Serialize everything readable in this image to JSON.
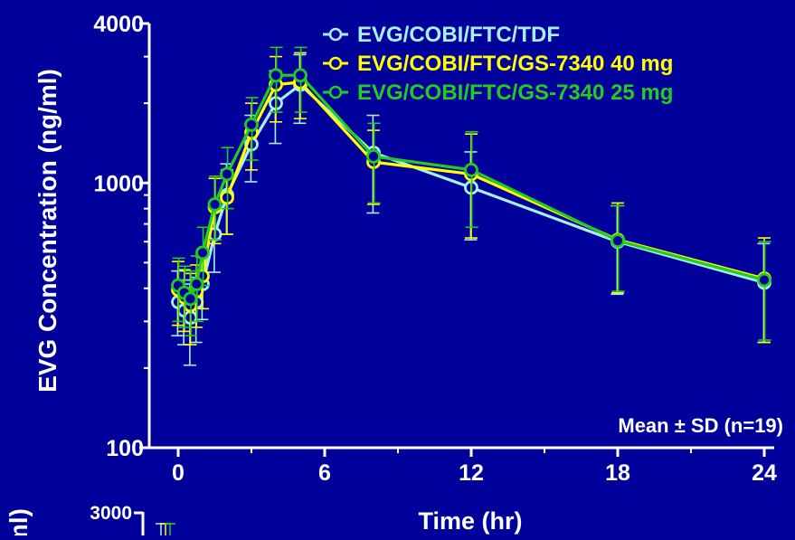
{
  "chart_data": [
    {
      "type": "line",
      "xlabel": "Time (hr)",
      "ylabel": "EVG Concentration (ng/ml)",
      "y_scale": "log",
      "xlim": [
        0,
        24
      ],
      "ylim": [
        100,
        4000
      ],
      "x_ticks": [
        "0",
        "6",
        "12",
        "18",
        "24"
      ],
      "y_ticks": [
        "100",
        "1000",
        "4000"
      ],
      "grid": false,
      "legend_position": "top-right",
      "annotation": "Mean ± SD (n=19)",
      "series": [
        {
          "name": "EVG/COBI/FTC/TDF",
          "color": "#a8f0f0",
          "x": [
            0,
            0.25,
            0.5,
            0.75,
            1,
            1.5,
            2,
            3,
            4,
            5,
            8,
            12,
            18,
            24
          ],
          "y": [
            355,
            330,
            310,
            355,
            415,
            640,
            900,
            1400,
            2000,
            2350,
            1300,
            960,
            600,
            420
          ],
          "sd_lower": [
            265,
            245,
            205,
            250,
            305,
            460,
            640,
            1010,
            1410,
            1680,
            770,
            610,
            380,
            250
          ],
          "sd_upper": [
            465,
            430,
            415,
            440,
            525,
            820,
            1180,
            1800,
            2650,
            3050,
            1800,
            1310,
            820,
            590
          ]
        },
        {
          "name": "EVG/COBI/FTC/GS-7340 40 mg",
          "color": "#ffff00",
          "x": [
            0,
            0.25,
            0.5,
            0.75,
            1,
            1.5,
            2,
            3,
            4,
            5,
            8,
            12,
            18,
            24
          ],
          "y": [
            395,
            370,
            345,
            390,
            445,
            810,
            880,
            1550,
            2350,
            2400,
            1200,
            1080,
            610,
            435
          ],
          "sd_lower": [
            290,
            275,
            245,
            285,
            335,
            590,
            640,
            1120,
            1700,
            1750,
            830,
            620,
            385,
            250
          ],
          "sd_upper": [
            505,
            470,
            455,
            490,
            560,
            1040,
            1120,
            2000,
            3000,
            3100,
            1580,
            1530,
            840,
            620
          ]
        },
        {
          "name": "EVG/COBI/FTC/GS-7340 25 mg",
          "color": "#22cc22",
          "x": [
            0,
            0.25,
            0.5,
            0.75,
            1,
            1.5,
            2,
            3,
            4,
            5,
            8,
            12,
            18,
            24
          ],
          "y": [
            410,
            385,
            365,
            415,
            545,
            830,
            1080,
            1660,
            2550,
            2550,
            1260,
            1120,
            605,
            430
          ],
          "sd_lower": [
            300,
            285,
            265,
            300,
            410,
            610,
            800,
            1220,
            1850,
            1850,
            840,
            680,
            390,
            255
          ],
          "sd_upper": [
            520,
            485,
            465,
            530,
            680,
            1060,
            1360,
            2100,
            3250,
            3250,
            1680,
            1560,
            820,
            600
          ]
        }
      ]
    },
    {
      "type": "line",
      "ylabel": "ml)",
      "y_ticks": [
        "3000"
      ],
      "note": "second chart, cut off at bottom of image"
    }
  ]
}
